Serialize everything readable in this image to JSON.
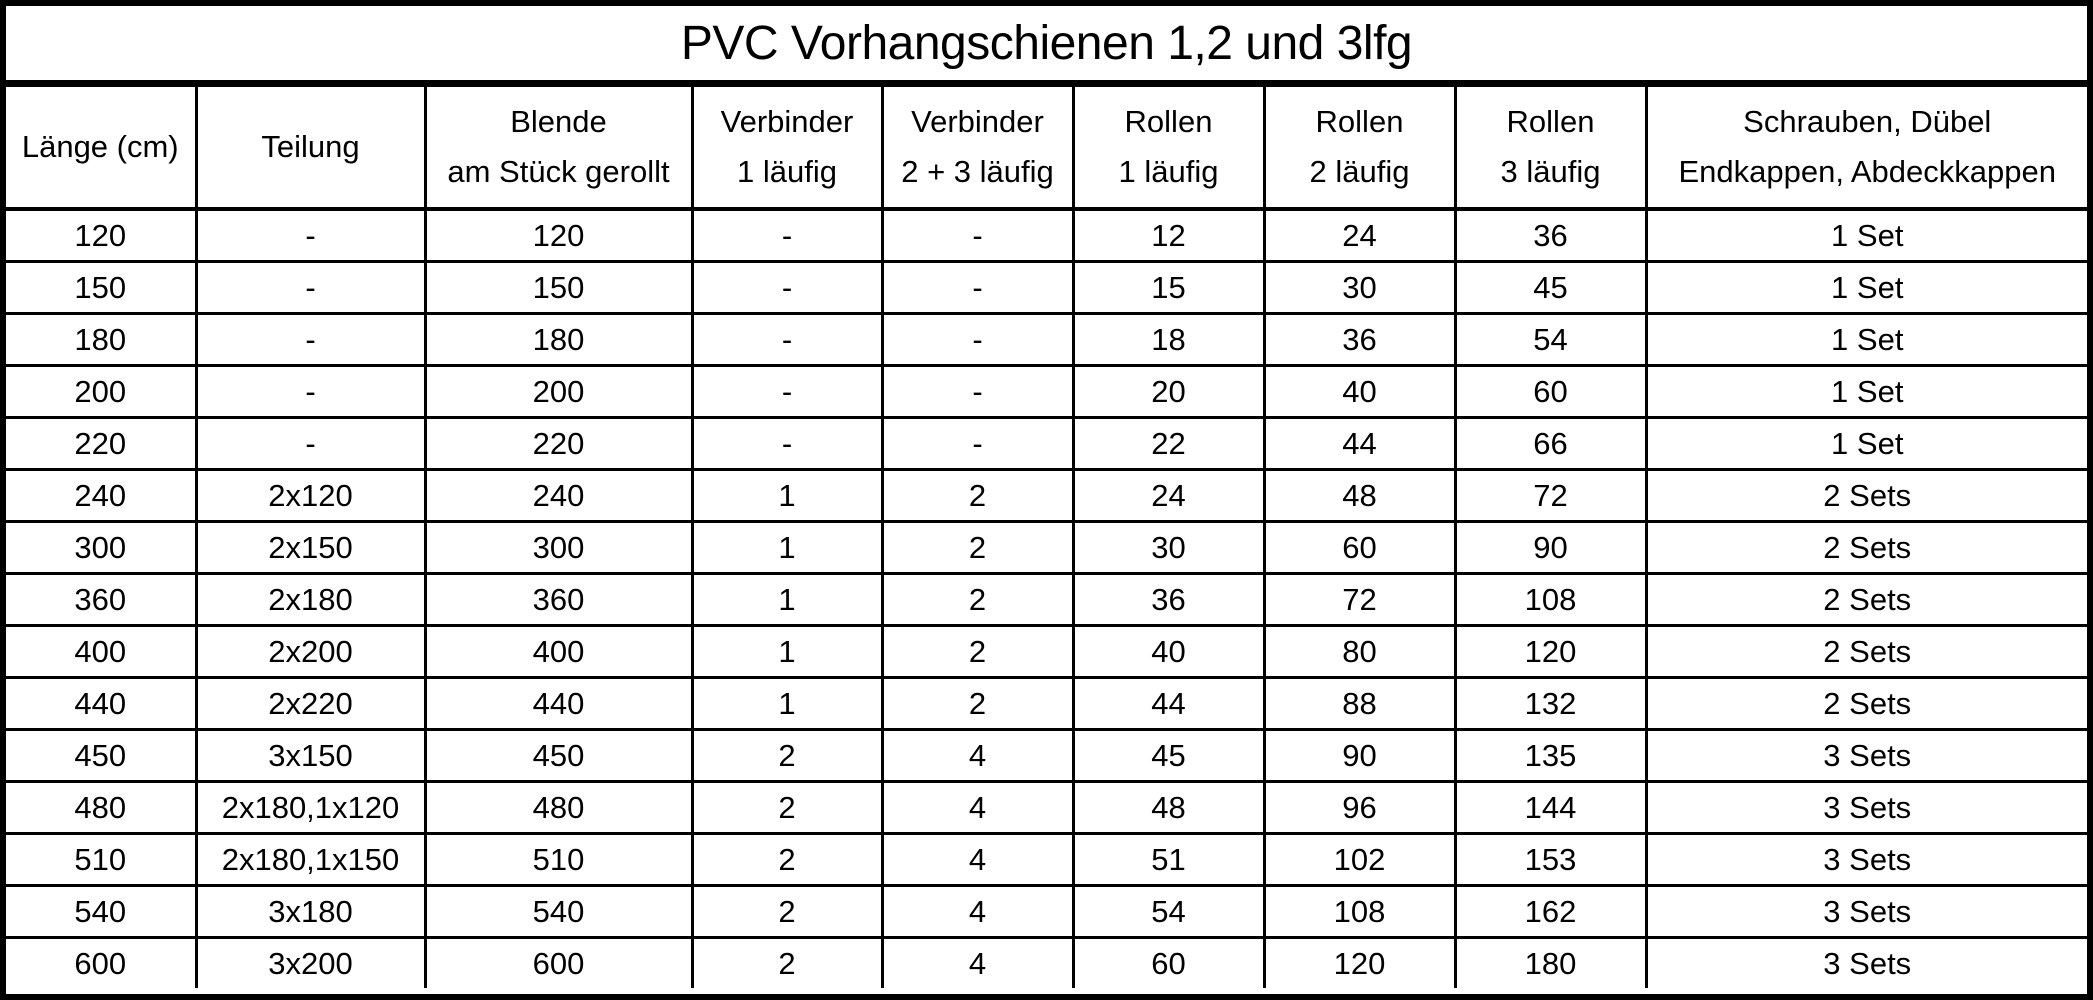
{
  "title": "PVC Vorhangschienen 1,2 und 3lfg",
  "headers": [
    {
      "line1": "Länge (cm)",
      "line2": ""
    },
    {
      "line1": "Teilung",
      "line2": ""
    },
    {
      "line1": "Blende",
      "line2": "am Stück gerollt"
    },
    {
      "line1": "Verbinder",
      "line2": "1 läufig"
    },
    {
      "line1": "Verbinder",
      "line2": "2 + 3 läufig"
    },
    {
      "line1": "Rollen",
      "line2": "1 läufig"
    },
    {
      "line1": "Rollen",
      "line2": "2 läufig"
    },
    {
      "line1": "Rollen",
      "line2": "3 läufig"
    },
    {
      "line1": "Schrauben, Dübel",
      "line2": "Endkappen, Abdeckkappen"
    }
  ],
  "rows": [
    [
      "120",
      "-",
      "120",
      "-",
      "-",
      "12",
      "24",
      "36",
      "1 Set"
    ],
    [
      "150",
      "-",
      "150",
      "-",
      "-",
      "15",
      "30",
      "45",
      "1 Set"
    ],
    [
      "180",
      "-",
      "180",
      "-",
      "-",
      "18",
      "36",
      "54",
      "1 Set"
    ],
    [
      "200",
      "-",
      "200",
      "-",
      "-",
      "20",
      "40",
      "60",
      "1 Set"
    ],
    [
      "220",
      "-",
      "220",
      "-",
      "-",
      "22",
      "44",
      "66",
      "1 Set"
    ],
    [
      "240",
      "2x120",
      "240",
      "1",
      "2",
      "24",
      "48",
      "72",
      "2 Sets"
    ],
    [
      "300",
      "2x150",
      "300",
      "1",
      "2",
      "30",
      "60",
      "90",
      "2 Sets"
    ],
    [
      "360",
      "2x180",
      "360",
      "1",
      "2",
      "36",
      "72",
      "108",
      "2 Sets"
    ],
    [
      "400",
      "2x200",
      "400",
      "1",
      "2",
      "40",
      "80",
      "120",
      "2 Sets"
    ],
    [
      "440",
      "2x220",
      "440",
      "1",
      "2",
      "44",
      "88",
      "132",
      "2 Sets"
    ],
    [
      "450",
      "3x150",
      "450",
      "2",
      "4",
      "45",
      "90",
      "135",
      "3 Sets"
    ],
    [
      "480",
      "2x180,1x120",
      "480",
      "2",
      "4",
      "48",
      "96",
      "144",
      "3 Sets"
    ],
    [
      "510",
      "2x180,1x150",
      "510",
      "2",
      "4",
      "51",
      "102",
      "153",
      "3 Sets"
    ],
    [
      "540",
      "3x180",
      "540",
      "2",
      "4",
      "54",
      "108",
      "162",
      "3 Sets"
    ],
    [
      "600",
      "3x200",
      "600",
      "2",
      "4",
      "60",
      "120",
      "180",
      "3 Sets"
    ]
  ]
}
